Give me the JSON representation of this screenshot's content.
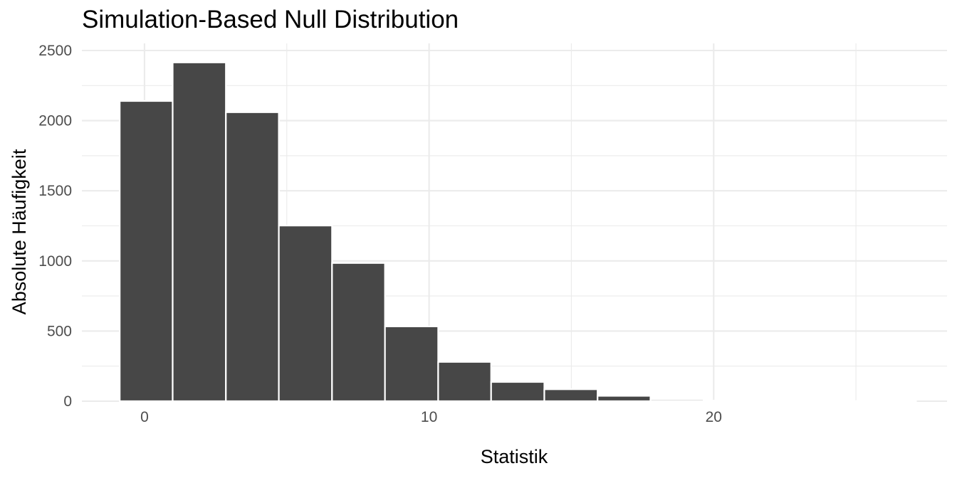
{
  "chart_data": {
    "type": "bar",
    "title": "Simulation-Based Null Distribution",
    "xlabel": "Statistik",
    "ylabel": "Absolute Häufigkeit",
    "xlim": [
      -2.2,
      28.2
    ],
    "ylim": [
      0,
      2500
    ],
    "x_major_ticks": [
      0,
      10,
      20
    ],
    "x_minor_ticks": [
      -5,
      5,
      15,
      25
    ],
    "y_major_ticks": [
      0,
      500,
      1000,
      1500,
      2000,
      2500
    ],
    "y_minor_ticks": [
      250,
      750,
      1250,
      1750,
      2250
    ],
    "x_tick_labels": [
      "0",
      "10",
      "20"
    ],
    "y_tick_labels": [
      "0",
      "500",
      "1000",
      "1500",
      "2000",
      "2500"
    ],
    "grid": true,
    "bar_color": "#474747",
    "bars": [
      {
        "x_start": -0.87,
        "x_end": 0.99,
        "value": 2140
      },
      {
        "x_start": 0.99,
        "x_end": 2.86,
        "value": 2415
      },
      {
        "x_start": 2.86,
        "x_end": 4.72,
        "value": 2060
      },
      {
        "x_start": 4.72,
        "x_end": 6.59,
        "value": 1252
      },
      {
        "x_start": 6.59,
        "x_end": 8.45,
        "value": 985
      },
      {
        "x_start": 8.45,
        "x_end": 10.32,
        "value": 533
      },
      {
        "x_start": 10.32,
        "x_end": 12.18,
        "value": 280
      },
      {
        "x_start": 12.18,
        "x_end": 14.05,
        "value": 137
      },
      {
        "x_start": 14.05,
        "x_end": 15.92,
        "value": 85
      },
      {
        "x_start": 15.92,
        "x_end": 17.78,
        "value": 38
      },
      {
        "x_start": 17.78,
        "x_end": 19.65,
        "value": 12
      },
      {
        "x_start": 19.65,
        "x_end": 21.51,
        "value": 4
      },
      {
        "x_start": 21.51,
        "x_end": 23.38,
        "value": 2
      },
      {
        "x_start": 23.38,
        "x_end": 25.24,
        "value": 1
      },
      {
        "x_start": 25.24,
        "x_end": 27.11,
        "value": 1
      }
    ]
  }
}
